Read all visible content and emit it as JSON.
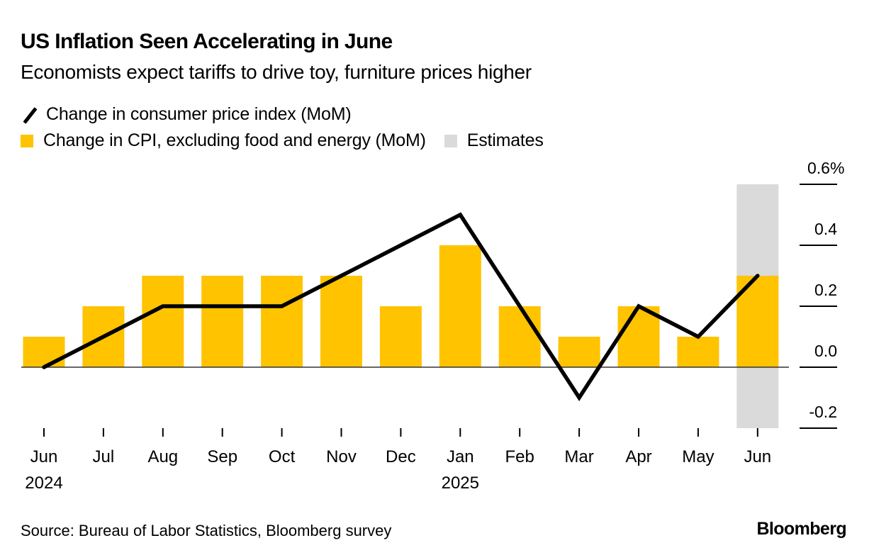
{
  "header": {
    "title": "US Inflation Seen Accelerating in June",
    "subtitle": "Economists expect tariffs to drive toy, furniture prices higher"
  },
  "legend": {
    "line_label": "Change in consumer price index (MoM)",
    "bar_label": "Change in CPI, excluding food and energy (MoM)",
    "estimates_label": "Estimates",
    "line_icon": "diagonal-line-icon"
  },
  "colors": {
    "bar": "#FFC300",
    "line": "#000000",
    "estimate_band": "#DADADA",
    "zero_line": "#333333"
  },
  "footer": {
    "source": "Source: Bureau of Labor Statistics, Bloomberg survey",
    "brand": "Bloomberg"
  },
  "chart_data": {
    "type": "bar",
    "title": "US Inflation Seen Accelerating in June",
    "subtitle": "Economists expect tariffs to drive toy, furniture prices higher",
    "xlabel": "",
    "ylabel": "",
    "categories": [
      "Jun",
      "Jul",
      "Aug",
      "Sep",
      "Oct",
      "Nov",
      "Dec",
      "Jan",
      "Feb",
      "Mar",
      "Apr",
      "May",
      "Jun"
    ],
    "category_years": [
      "2024",
      "",
      "",
      "",
      "",
      "",
      "",
      "2025",
      "",
      "",
      "",
      "",
      ""
    ],
    "series": [
      {
        "name": "Change in CPI, excluding food and energy (MoM)",
        "type": "bar",
        "values": [
          0.1,
          0.2,
          0.3,
          0.3,
          0.3,
          0.3,
          0.2,
          0.4,
          0.2,
          0.1,
          0.2,
          0.1,
          0.3
        ]
      },
      {
        "name": "Change in consumer price index (MoM)",
        "type": "line",
        "values": [
          0.0,
          0.1,
          0.2,
          0.2,
          0.2,
          0.3,
          0.4,
          0.5,
          0.2,
          -0.1,
          0.2,
          0.1,
          0.3
        ]
      }
    ],
    "estimates": {
      "label": "Estimates",
      "categories_index": [
        12
      ]
    },
    "yticks": [
      0.6,
      0.4,
      0.2,
      0.0,
      -0.2
    ],
    "ytick_labels": [
      "0.6%",
      "0.4",
      "0.2",
      "0.0",
      "-0.2"
    ],
    "ylim": [
      -0.2,
      0.6
    ],
    "y_axis_side": "right",
    "grid": false,
    "legend_position": "top-left"
  }
}
